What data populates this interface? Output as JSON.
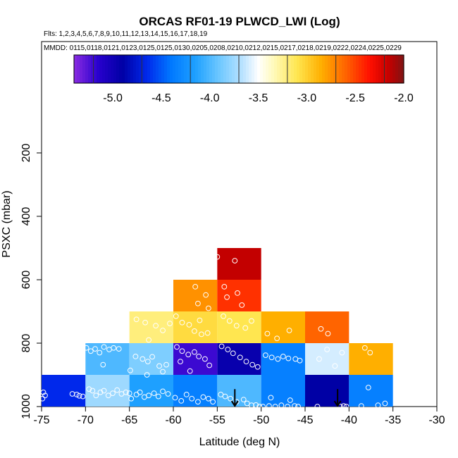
{
  "chart_data": {
    "type": "heatmap",
    "title": "ORCAS RF01-19 PLWCD_LWI (Log)",
    "flights_line": "Flts: 1,2,3,4,5,6,7,8,9,10,11,12,13,14,15,16,17,18,19",
    "dates_line": "MMDD: 0115,0118,0121,0123,0125,0125,0130,0205,0208,0210,0212,0215,0217,0218,0219,0222,0224,0225,0229",
    "xlabel": "Latitude (deg N)",
    "ylabel": "PSXC (mbar)",
    "xlim": [
      -75,
      -30
    ],
    "ylim": [
      1000,
      100
    ],
    "x_ticks": [
      -75,
      -70,
      -65,
      -60,
      -55,
      -50,
      -45,
      -40,
      -35,
      -30
    ],
    "x_tick_labels": [
      "-75",
      "-70",
      "-65",
      "-60",
      "-55",
      "-50",
      "-45",
      "-40",
      "-35",
      "-30"
    ],
    "y_ticks": [
      200,
      400,
      600,
      800,
      1000
    ],
    "y_tick_labels": [
      "200",
      "400",
      "600",
      "800",
      "1000"
    ],
    "colorbar": {
      "range": [
        -5.4,
        -2.0
      ],
      "ticks": [
        -5.0,
        -4.5,
        -4.0,
        -3.5,
        -3.0,
        -2.5,
        -2.0
      ],
      "tick_labels": [
        "-5.0",
        "-4.5",
        "-4.0",
        "-3.5",
        "-3.0",
        "-2.5",
        "-2.0"
      ]
    },
    "cells": [
      {
        "lat0": -75,
        "lat1": -70,
        "p0": 1000,
        "p1": 900,
        "value": -4.65
      },
      {
        "lat0": -70,
        "lat1": -65,
        "p0": 1000,
        "p1": 900,
        "value": -3.75
      },
      {
        "lat0": -70,
        "lat1": -65,
        "p0": 900,
        "p1": 800,
        "value": -4.0
      },
      {
        "lat0": -65,
        "lat1": -60,
        "p0": 1000,
        "p1": 900,
        "value": -4.15
      },
      {
        "lat0": -65,
        "lat1": -60,
        "p0": 900,
        "p1": 800,
        "value": -3.85
      },
      {
        "lat0": -65,
        "lat1": -60,
        "p0": 800,
        "p1": 700,
        "value": -3.2
      },
      {
        "lat0": -60,
        "lat1": -55,
        "p0": 1000,
        "p1": 900,
        "value": -4.35
      },
      {
        "lat0": -60,
        "lat1": -55,
        "p0": 900,
        "p1": 800,
        "value": -5.2
      },
      {
        "lat0": -60,
        "lat1": -55,
        "p0": 800,
        "p1": 700,
        "value": -3.05
      },
      {
        "lat0": -60,
        "lat1": -55,
        "p0": 700,
        "p1": 600,
        "value": -2.75
      },
      {
        "lat0": -55,
        "lat1": -50,
        "p0": 1000,
        "p1": 900,
        "value": -4.0
      },
      {
        "lat0": -55,
        "lat1": -50,
        "p0": 900,
        "p1": 800,
        "value": -4.95
      },
      {
        "lat0": -55,
        "lat1": -50,
        "p0": 800,
        "p1": 700,
        "value": -3.1
      },
      {
        "lat0": -55,
        "lat1": -50,
        "p0": 700,
        "p1": 600,
        "value": -2.45
      },
      {
        "lat0": -55,
        "lat1": -50,
        "p0": 600,
        "p1": 500,
        "value": -2.15
      },
      {
        "lat0": -50,
        "lat1": -45,
        "p0": 1000,
        "p1": 900,
        "value": -4.35
      },
      {
        "lat0": -50,
        "lat1": -45,
        "p0": 900,
        "p1": 800,
        "value": -4.35
      },
      {
        "lat0": -50,
        "lat1": -45,
        "p0": 800,
        "p1": 700,
        "value": -2.85
      },
      {
        "lat0": -45,
        "lat1": -40,
        "p0": 1000,
        "p1": 900,
        "value": -4.9
      },
      {
        "lat0": -45,
        "lat1": -40,
        "p0": 900,
        "p1": 800,
        "value": -3.6
      },
      {
        "lat0": -45,
        "lat1": -40,
        "p0": 800,
        "p1": 700,
        "value": -2.6
      },
      {
        "lat0": -40,
        "lat1": -35,
        "p0": 1000,
        "p1": 900,
        "value": -4.35
      },
      {
        "lat0": -40,
        "lat1": -35,
        "p0": 900,
        "p1": 800,
        "value": -2.85
      }
    ],
    "samples": [
      [
        -74.8,
        955
      ],
      [
        -74.6,
        965
      ],
      [
        -74.9,
        975
      ],
      [
        -71.5,
        960
      ],
      [
        -71.0,
        962
      ],
      [
        -70.7,
        966
      ],
      [
        -70.3,
        968
      ],
      [
        -69.6,
        945
      ],
      [
        -69.2,
        950
      ],
      [
        -68.8,
        965
      ],
      [
        -68.3,
        955
      ],
      [
        -67.9,
        950
      ],
      [
        -67.4,
        965
      ],
      [
        -66.9,
        958
      ],
      [
        -66.4,
        948
      ],
      [
        -65.9,
        960
      ],
      [
        -65.4,
        955
      ],
      [
        -65.0,
        958
      ],
      [
        -69.9,
        815
      ],
      [
        -69.4,
        825
      ],
      [
        -68.9,
        818
      ],
      [
        -68.4,
        830
      ],
      [
        -67.9,
        812
      ],
      [
        -67.3,
        820
      ],
      [
        -66.8,
        815
      ],
      [
        -66.2,
        818
      ],
      [
        -68.0,
        868
      ],
      [
        -64.8,
        975
      ],
      [
        -64.2,
        962
      ],
      [
        -63.8,
        955
      ],
      [
        -63.3,
        970
      ],
      [
        -62.8,
        965
      ],
      [
        -62.2,
        958
      ],
      [
        -61.7,
        968
      ],
      [
        -61.2,
        952
      ],
      [
        -60.6,
        960
      ],
      [
        -64.3,
        842
      ],
      [
        -63.5,
        850
      ],
      [
        -62.9,
        858
      ],
      [
        -62.4,
        843
      ],
      [
        -61.6,
        872
      ],
      [
        -61.2,
        890
      ],
      [
        -60.8,
        868
      ],
      [
        -64.9,
        886
      ],
      [
        -63.0,
        900
      ],
      [
        -64.2,
        725
      ],
      [
        -63.2,
        735
      ],
      [
        -62.0,
        745
      ],
      [
        -61.2,
        760
      ],
      [
        -60.4,
        738
      ],
      [
        -62.8,
        790
      ],
      [
        -59.8,
        972
      ],
      [
        -59.1,
        982
      ],
      [
        -58.5,
        962
      ],
      [
        -57.9,
        975
      ],
      [
        -57.2,
        985
      ],
      [
        -56.6,
        970
      ],
      [
        -56.0,
        975
      ],
      [
        -55.5,
        985
      ],
      [
        -59.6,
        812
      ],
      [
        -59.0,
        825
      ],
      [
        -58.3,
        836
      ],
      [
        -57.6,
        828
      ],
      [
        -57.1,
        842
      ],
      [
        -56.4,
        850
      ],
      [
        -55.9,
        870
      ],
      [
        -59.2,
        858
      ],
      [
        -58.1,
        888
      ],
      [
        -59.7,
        715
      ],
      [
        -59.0,
        735
      ],
      [
        -58.2,
        742
      ],
      [
        -57.6,
        762
      ],
      [
        -56.8,
        772
      ],
      [
        -56.1,
        768
      ],
      [
        -57.0,
        728
      ],
      [
        -57.5,
        622
      ],
      [
        -56.3,
        648
      ],
      [
        -57.2,
        675
      ],
      [
        -56.0,
        690
      ],
      [
        -54.6,
        962
      ],
      [
        -54.1,
        968
      ],
      [
        -53.5,
        975
      ],
      [
        -52.8,
        985
      ],
      [
        -52.0,
        978
      ],
      [
        -51.6,
        990
      ],
      [
        -51.1,
        996
      ],
      [
        -50.6,
        995
      ],
      [
        -50.2,
        1000
      ],
      [
        -54.5,
        810
      ],
      [
        -53.8,
        820
      ],
      [
        -53.2,
        832
      ],
      [
        -52.4,
        845
      ],
      [
        -51.7,
        858
      ],
      [
        -51.0,
        868
      ],
      [
        -50.4,
        875
      ],
      [
        -54.3,
        715
      ],
      [
        -53.6,
        730
      ],
      [
        -52.8,
        745
      ],
      [
        -51.8,
        752
      ],
      [
        -51.1,
        730
      ],
      [
        -54.2,
        622
      ],
      [
        -52.7,
        642
      ],
      [
        -52.2,
        680
      ],
      [
        -53.9,
        655
      ],
      [
        -55.0,
        528
      ],
      [
        -53.0,
        540
      ],
      [
        -49.8,
        1000
      ],
      [
        -49.1,
        998
      ],
      [
        -48.4,
        1000
      ],
      [
        -47.7,
        996
      ],
      [
        -47.0,
        1000
      ],
      [
        -46.2,
        998
      ],
      [
        -45.8,
        1000
      ],
      [
        -48.9,
        972
      ],
      [
        -46.7,
        980
      ],
      [
        -49.5,
        838
      ],
      [
        -48.8,
        845
      ],
      [
        -48.1,
        850
      ],
      [
        -47.5,
        842
      ],
      [
        -46.9,
        848
      ],
      [
        -46.1,
        850
      ],
      [
        -45.6,
        855
      ],
      [
        -49.3,
        770
      ],
      [
        -48.2,
        785
      ],
      [
        -46.8,
        760
      ],
      [
        -43.6,
        1000
      ],
      [
        -41.0,
        1000
      ],
      [
        -40.6,
        998
      ],
      [
        -40.3,
        1000
      ],
      [
        -42.5,
        820
      ],
      [
        -43.4,
        850
      ],
      [
        -41.6,
        872
      ],
      [
        -40.8,
        830
      ],
      [
        -43.2,
        755
      ],
      [
        -42.4,
        770
      ],
      [
        -38.6,
        998
      ],
      [
        -36.7,
        996
      ],
      [
        -35.9,
        990
      ],
      [
        -37.8,
        940
      ],
      [
        -38.2,
        815
      ],
      [
        -37.6,
        830
      ]
    ],
    "arrows": [
      {
        "lat": -53.0,
        "p_top": 945,
        "p_bottom": 998
      },
      {
        "lat": -41.3,
        "p_top": 945,
        "p_bottom": 998
      }
    ]
  }
}
